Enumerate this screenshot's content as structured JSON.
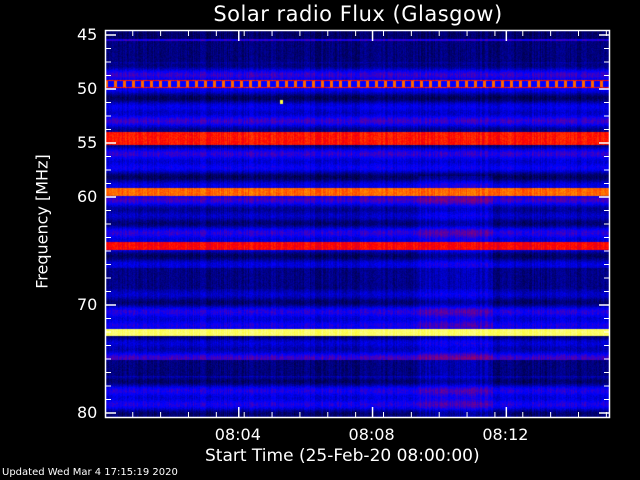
{
  "chart_data": {
    "type": "heatmap",
    "title": "Solar radio Flux (Glasgow)",
    "xlabel": "Start Time (25-Feb-20 08:00:00)",
    "ylabel": "Frequency [MHz]",
    "x_ticks": [
      "08:04",
      "08:08",
      "08:12"
    ],
    "x_tick_minutes": [
      4,
      8,
      12
    ],
    "xlim_minutes": [
      0,
      15.1
    ],
    "y_ticks": [
      45,
      50,
      55,
      60,
      70,
      80
    ],
    "ylim": [
      45,
      80
    ],
    "y_inverted": true,
    "colormap": [
      "#000000",
      "#0000ff",
      "#ff0000",
      "#ffff00",
      "#ffffff"
    ],
    "bands": [
      {
        "freq_mhz": 49.5,
        "intensity": "orange, intermittent"
      },
      {
        "freq_mhz": 54.5,
        "intensity": "red"
      },
      {
        "freq_mhz": 59.5,
        "intensity": "orange"
      },
      {
        "freq_mhz": 64.5,
        "intensity": "red"
      },
      {
        "freq_mhz": 72.5,
        "intensity": "yellow-white"
      }
    ]
  },
  "footer": {
    "updated": "Updated Wed Mar  4 17:15:19 2020"
  }
}
